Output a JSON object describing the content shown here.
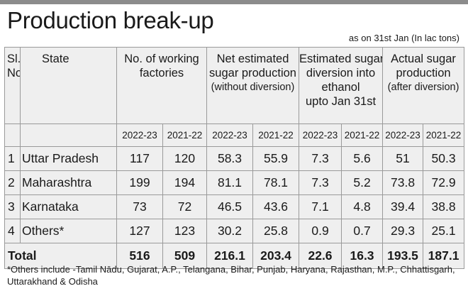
{
  "title": "Production break-up",
  "as_of": "as on 31st Jan (In lac tons)",
  "headers": {
    "sl_line1": "Sl.",
    "sl_line2": "No.",
    "state": "State",
    "factories_line1": "No. of working",
    "factories_line2": "factories",
    "net_line1": "Net estimated",
    "net_line2": "sugar production",
    "net_line3": "(without diversion)",
    "div_line1": "Estimated sugar",
    "div_line2": "diversion into",
    "div_line3": "ethanol",
    "div_line4": "upto Jan 31st",
    "actual_line1": "Actual sugar",
    "actual_line2": "production",
    "actual_line3": "(after diversion)"
  },
  "years": [
    "2022-23",
    "2021-22",
    "2022-23",
    "2021-22",
    "2022-23",
    "2021-22",
    "2022-23",
    "2021-22"
  ],
  "rows": [
    {
      "no": "1",
      "state": "Uttar Pradesh",
      "values": [
        "117",
        "120",
        "58.3",
        "55.9",
        "7.3",
        "5.6",
        "51",
        "50.3"
      ]
    },
    {
      "no": "2",
      "state": "Maharashtra",
      "values": [
        "199",
        "194",
        "81.1",
        "78.1",
        "7.3",
        "5.2",
        "73.8",
        "72.9"
      ]
    },
    {
      "no": "3",
      "state": "Karnataka",
      "values": [
        "73",
        "72",
        "46.5",
        "43.6",
        "7.1",
        "4.8",
        "39.4",
        "38.8"
      ]
    },
    {
      "no": "4",
      "state": "Others*",
      "values": [
        "127",
        "123",
        "30.2",
        "25.8",
        "0.9",
        "0.7",
        "29.3",
        "25.1"
      ]
    }
  ],
  "total": {
    "label": "Total",
    "values": [
      "516",
      "509",
      "216.1",
      "203.4",
      "22.6",
      "16.3",
      "193.5",
      "187.1"
    ]
  },
  "footnote": "*Others include -Tamil Nādu, Gujarat, A.P., Telangana, Bihar, Punjab, Haryana, Rajasthan, M.P., Chhattisgarh, Uttarakhand & Odisha"
}
